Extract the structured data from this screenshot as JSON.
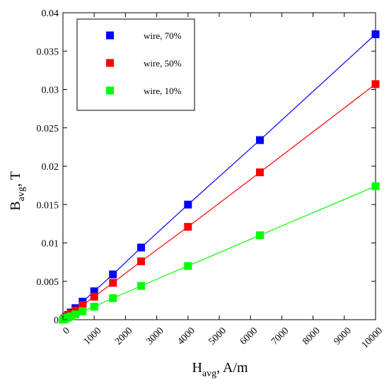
{
  "chart_data": {
    "type": "line",
    "title": "",
    "xlabel": {
      "main": "H",
      "sub": "avg",
      "unit": ", A/m"
    },
    "ylabel": {
      "main": "B",
      "sub": "avg",
      "unit": ", T"
    },
    "xlim": [
      0,
      10000
    ],
    "ylim": [
      0,
      0.04
    ],
    "xticks": [
      0,
      1000,
      2000,
      3000,
      4000,
      5000,
      6000,
      7000,
      8000,
      9000,
      10000
    ],
    "xtick_labels": [
      "0",
      "1000",
      "2000",
      "3000",
      "4000",
      "5000",
      "6000",
      "7000",
      "8000",
      "9000",
      "10000"
    ],
    "yticks": [
      0,
      0.005,
      0.01,
      0.015,
      0.02,
      0.025,
      0.03,
      0.035,
      0.04
    ],
    "ytick_labels": [
      "0",
      "0.005",
      "0.01",
      "0.015",
      "0.02",
      "0.025",
      "0.03",
      "0.035",
      "0.04"
    ],
    "grid": false,
    "legend_position": "top-left",
    "x": [
      0,
      40,
      100,
      160,
      250,
      400,
      630,
      1000,
      1600,
      2500,
      4000,
      6300,
      10000
    ],
    "series": [
      {
        "name": "wire, 70%",
        "color": "#0000ff",
        "marker": "square",
        "values": [
          0,
          0.00015,
          0.00037,
          0.0006,
          0.00093,
          0.0015,
          0.00235,
          0.0037,
          0.0059,
          0.0094,
          0.015,
          0.0234,
          0.0372
        ]
      },
      {
        "name": "wire, 50%",
        "color": "#ff0000",
        "marker": "square",
        "values": [
          0,
          0.00012,
          0.0003,
          0.00048,
          0.00076,
          0.0012,
          0.0019,
          0.003,
          0.0048,
          0.0076,
          0.0121,
          0.0192,
          0.0307
        ]
      },
      {
        "name": "wire, 10%",
        "color": "#00ff00",
        "marker": "square",
        "values": [
          0,
          7e-05,
          0.00017,
          0.00028,
          0.00044,
          0.0007,
          0.0011,
          0.0017,
          0.0028,
          0.0044,
          0.007,
          0.011,
          0.0174
        ]
      }
    ]
  }
}
